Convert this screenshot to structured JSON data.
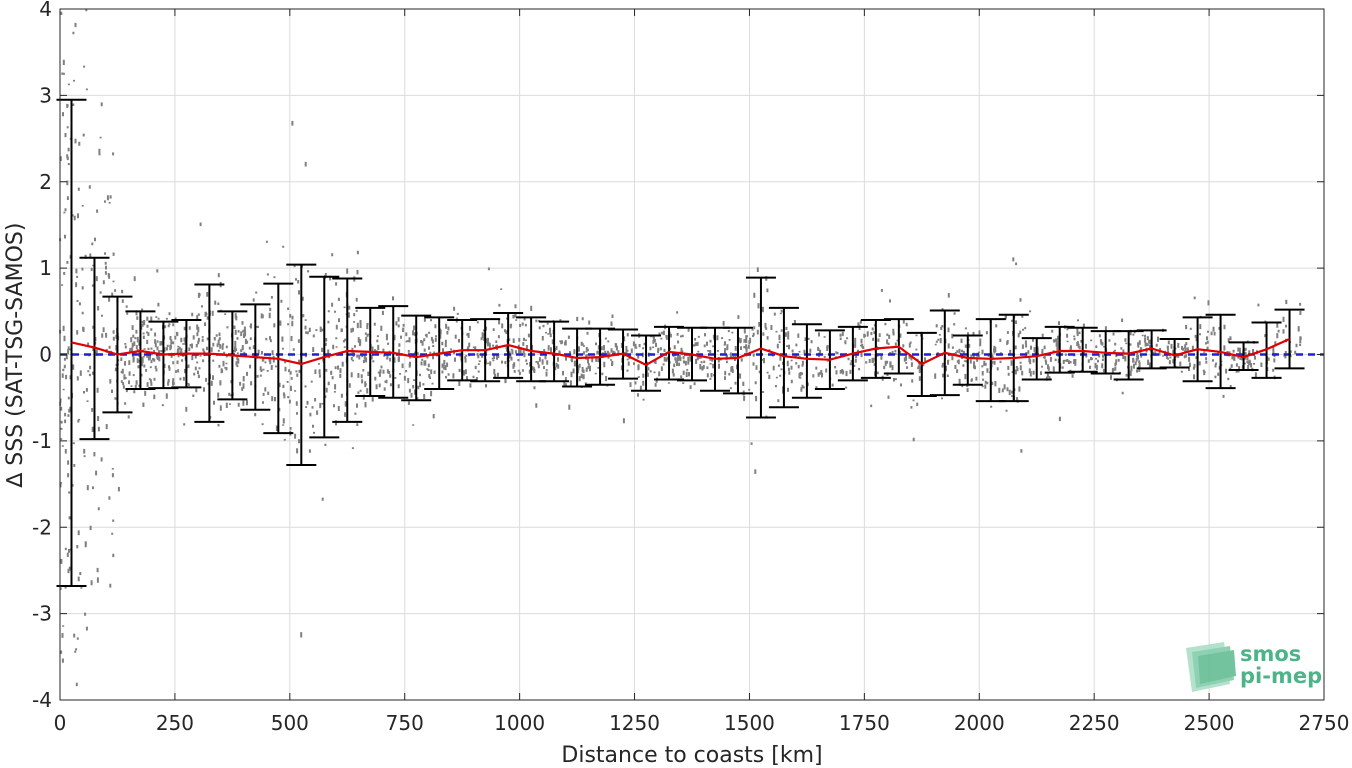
{
  "chart_data": {
    "type": "scatter",
    "xlabel": "Distance to coasts [km]",
    "ylabel": "∆ SSS (SAT-TSG-SAMOS)",
    "xlim": [
      0,
      2750
    ],
    "ylim": [
      -4,
      4
    ],
    "x_ticks": [
      0,
      250,
      500,
      750,
      1000,
      1250,
      1500,
      1750,
      2000,
      2250,
      2500,
      2750
    ],
    "x_tick_labels": [
      "0",
      "250",
      "500",
      "750",
      "1000",
      "1250",
      "1500",
      "1750",
      "2000",
      "2250",
      "2500",
      "2750"
    ],
    "y_ticks": [
      -4,
      -3,
      -2,
      -1,
      0,
      1,
      2,
      3,
      4
    ],
    "y_tick_labels": [
      "-4",
      "-3",
      "-2",
      "-1",
      "0",
      "1",
      "2",
      "3",
      "4"
    ],
    "grid": true,
    "reference_line": {
      "y": 0,
      "color": "#1f1fd6",
      "style": "dashed"
    },
    "scatter_color": "#808080",
    "mean_line_color": "#e00000",
    "errorbar_color": "#000000",
    "errorbars": [
      {
        "x": 25,
        "mean": 0.14,
        "lower": -2.68,
        "upper": 2.95
      },
      {
        "x": 75,
        "mean": 0.08,
        "lower": -0.98,
        "upper": 1.12
      },
      {
        "x": 125,
        "mean": 0.0,
        "lower": -0.67,
        "upper": 0.67
      },
      {
        "x": 175,
        "mean": 0.04,
        "lower": -0.4,
        "upper": 0.5
      },
      {
        "x": 225,
        "mean": 0.0,
        "lower": -0.39,
        "upper": 0.38
      },
      {
        "x": 275,
        "mean": 0.01,
        "lower": -0.38,
        "upper": 0.4
      },
      {
        "x": 325,
        "mean": 0.01,
        "lower": -0.78,
        "upper": 0.81
      },
      {
        "x": 375,
        "mean": -0.01,
        "lower": -0.52,
        "upper": 0.5
      },
      {
        "x": 425,
        "mean": -0.03,
        "lower": -0.64,
        "upper": 0.58
      },
      {
        "x": 475,
        "mean": -0.05,
        "lower": -0.91,
        "upper": 0.82
      },
      {
        "x": 525,
        "mean": -0.11,
        "lower": -1.28,
        "upper": 1.04
      },
      {
        "x": 575,
        "mean": -0.03,
        "lower": -0.96,
        "upper": 0.9
      },
      {
        "x": 625,
        "mean": 0.04,
        "lower": -0.78,
        "upper": 0.88
      },
      {
        "x": 675,
        "mean": 0.03,
        "lower": -0.48,
        "upper": 0.54
      },
      {
        "x": 725,
        "mean": 0.02,
        "lower": -0.5,
        "upper": 0.56
      },
      {
        "x": 775,
        "mean": -0.03,
        "lower": -0.53,
        "upper": 0.45
      },
      {
        "x": 825,
        "mean": 0.01,
        "lower": -0.4,
        "upper": 0.43
      },
      {
        "x": 875,
        "mean": 0.05,
        "lower": -0.3,
        "upper": 0.4
      },
      {
        "x": 925,
        "mean": 0.05,
        "lower": -0.31,
        "upper": 0.41
      },
      {
        "x": 975,
        "mean": 0.11,
        "lower": -0.27,
        "upper": 0.48
      },
      {
        "x": 1025,
        "mean": 0.04,
        "lower": -0.31,
        "upper": 0.43
      },
      {
        "x": 1075,
        "mean": 0.01,
        "lower": -0.31,
        "upper": 0.38
      },
      {
        "x": 1125,
        "mean": -0.04,
        "lower": -0.37,
        "upper": 0.3
      },
      {
        "x": 1175,
        "mean": -0.03,
        "lower": -0.35,
        "upper": 0.3
      },
      {
        "x": 1225,
        "mean": 0.01,
        "lower": -0.28,
        "upper": 0.29
      },
      {
        "x": 1275,
        "mean": -0.12,
        "lower": -0.42,
        "upper": 0.22
      },
      {
        "x": 1325,
        "mean": 0.03,
        "lower": -0.29,
        "upper": 0.32
      },
      {
        "x": 1375,
        "mean": 0.0,
        "lower": -0.3,
        "upper": 0.31
      },
      {
        "x": 1425,
        "mean": -0.05,
        "lower": -0.42,
        "upper": 0.31
      },
      {
        "x": 1475,
        "mean": -0.04,
        "lower": -0.45,
        "upper": 0.31
      },
      {
        "x": 1525,
        "mean": 0.07,
        "lower": -0.73,
        "upper": 0.89
      },
      {
        "x": 1575,
        "mean": -0.02,
        "lower": -0.61,
        "upper": 0.54
      },
      {
        "x": 1625,
        "mean": -0.05,
        "lower": -0.5,
        "upper": 0.35
      },
      {
        "x": 1675,
        "mean": -0.06,
        "lower": -0.4,
        "upper": 0.28
      },
      {
        "x": 1725,
        "mean": 0.01,
        "lower": -0.3,
        "upper": 0.32
      },
      {
        "x": 1775,
        "mean": 0.07,
        "lower": -0.27,
        "upper": 0.4
      },
      {
        "x": 1825,
        "mean": 0.09,
        "lower": -0.22,
        "upper": 0.41
      },
      {
        "x": 1875,
        "mean": -0.11,
        "lower": -0.48,
        "upper": 0.25
      },
      {
        "x": 1925,
        "mean": 0.02,
        "lower": -0.47,
        "upper": 0.51
      },
      {
        "x": 1975,
        "mean": -0.04,
        "lower": -0.35,
        "upper": 0.22
      },
      {
        "x": 2025,
        "mean": -0.05,
        "lower": -0.54,
        "upper": 0.41
      },
      {
        "x": 2075,
        "mean": -0.04,
        "lower": -0.54,
        "upper": 0.46
      },
      {
        "x": 2125,
        "mean": -0.02,
        "lower": -0.29,
        "upper": 0.19
      },
      {
        "x": 2175,
        "mean": 0.04,
        "lower": -0.21,
        "upper": 0.32
      },
      {
        "x": 2225,
        "mean": 0.04,
        "lower": -0.2,
        "upper": 0.31
      },
      {
        "x": 2275,
        "mean": 0.02,
        "lower": -0.22,
        "upper": 0.27
      },
      {
        "x": 2325,
        "mean": 0.01,
        "lower": -0.29,
        "upper": 0.27
      },
      {
        "x": 2375,
        "mean": 0.07,
        "lower": -0.16,
        "upper": 0.28
      },
      {
        "x": 2425,
        "mean": -0.01,
        "lower": -0.15,
        "upper": 0.18
      },
      {
        "x": 2475,
        "mean": 0.06,
        "lower": -0.31,
        "upper": 0.43
      },
      {
        "x": 2525,
        "mean": 0.03,
        "lower": -0.39,
        "upper": 0.46
      },
      {
        "x": 2575,
        "mean": -0.03,
        "lower": -0.18,
        "upper": 0.14
      },
      {
        "x": 2625,
        "mean": 0.06,
        "lower": -0.27,
        "upper": 0.37
      },
      {
        "x": 2675,
        "mean": 0.18,
        "lower": -0.16,
        "upper": 0.52
      }
    ]
  },
  "logo": {
    "line1": "smos",
    "line2": "pi-mep",
    "color": "#4fb389",
    "icon": "smos-wave-icon"
  }
}
